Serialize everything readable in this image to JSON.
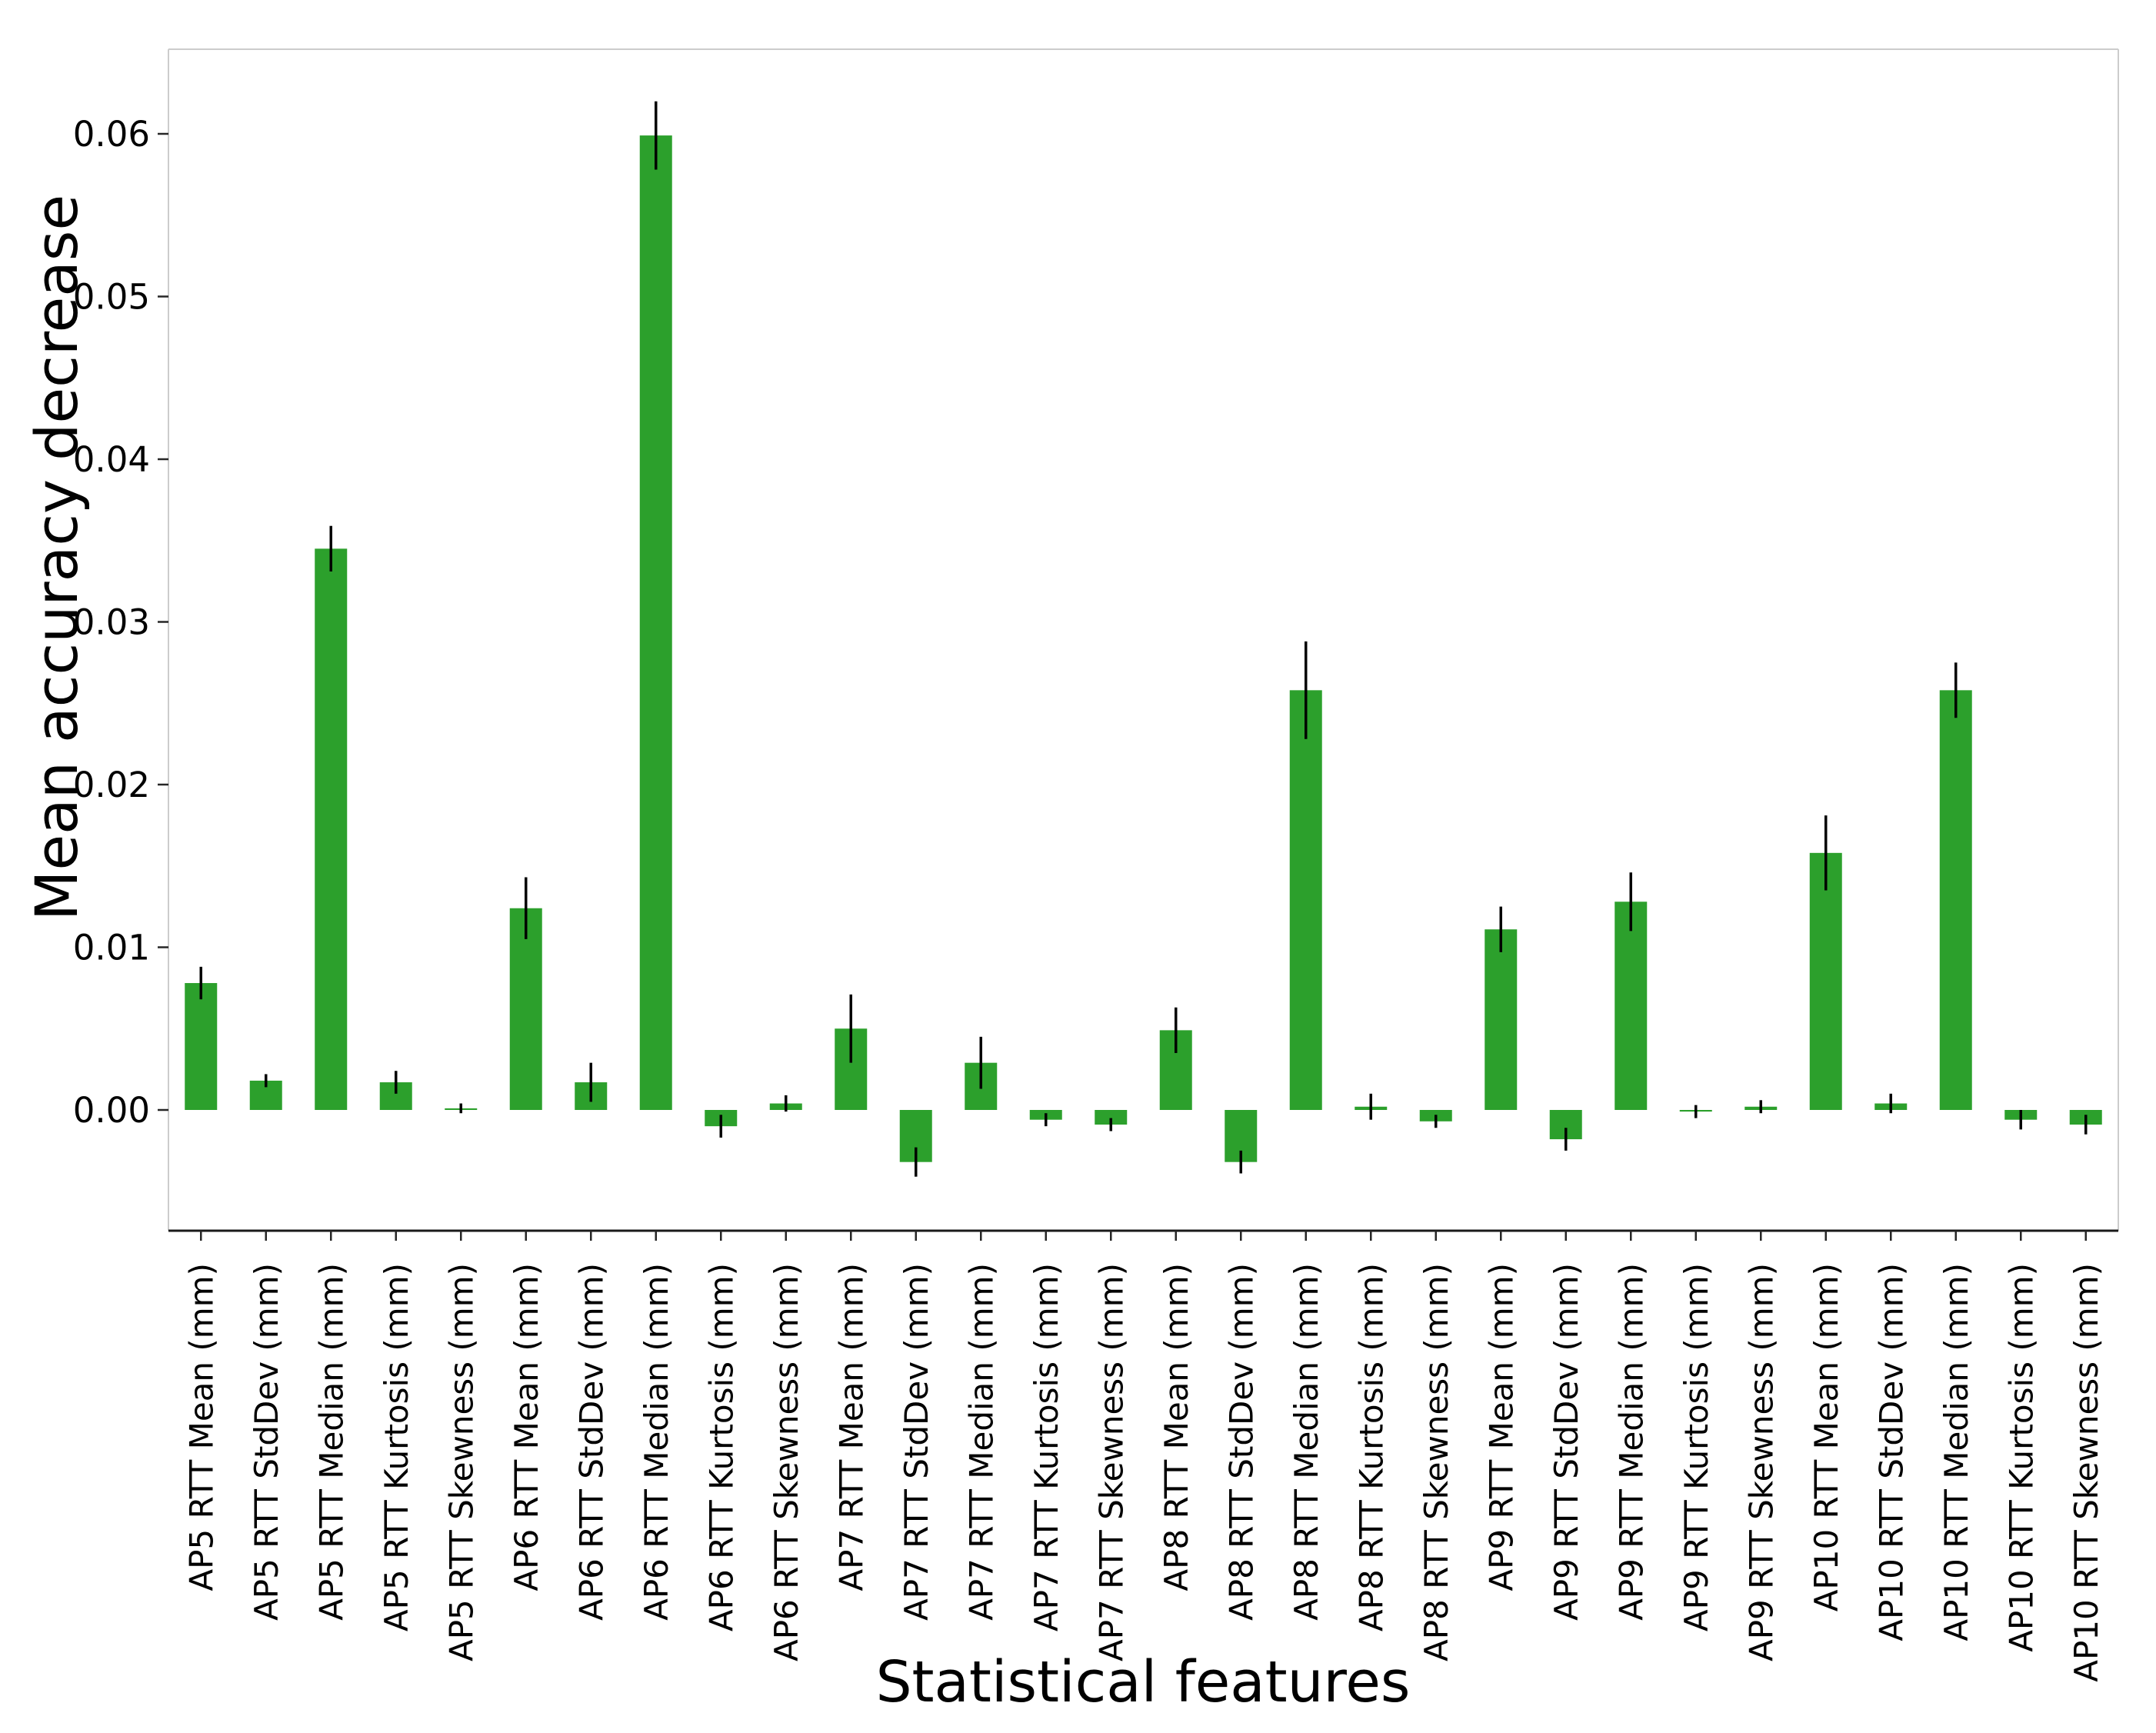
{
  "figure": {
    "background": "#ffffff"
  },
  "chart_data": {
    "type": "bar",
    "title": "",
    "xlabel": "Statistical features",
    "ylabel": "Mean accuracy decrease",
    "bar_color": "#2ca02c",
    "error_bar_color": "#000000",
    "grid": false,
    "legend_position": "none",
    "ylim": [
      -0.0074,
      0.0652
    ],
    "yticks": [
      0.0,
      0.01,
      0.02,
      0.03,
      0.04,
      0.05,
      0.06
    ],
    "ytick_labels": [
      "0.00",
      "0.01",
      "0.02",
      "0.03",
      "0.04",
      "0.05",
      "0.06"
    ],
    "categories": [
      "AP5 RTT Mean (mm)",
      "AP5 RTT StdDev (mm)",
      "AP5 RTT Median (mm)",
      "AP5 RTT Kurtosis (mm)",
      "AP5 RTT Skewness (mm)",
      "AP6 RTT Mean (mm)",
      "AP6 RTT StdDev (mm)",
      "AP6 RTT Median (mm)",
      "AP6 RTT Kurtosis (mm)",
      "AP6 RTT Skewness (mm)",
      "AP7 RTT Mean (mm)",
      "AP7 RTT StdDev (mm)",
      "AP7 RTT Median (mm)",
      "AP7 RTT Kurtosis (mm)",
      "AP7 RTT Skewness (mm)",
      "AP8 RTT Mean (mm)",
      "AP8 RTT StdDev (mm)",
      "AP8 RTT Median (mm)",
      "AP8 RTT Kurtosis (mm)",
      "AP8 RTT Skewness (mm)",
      "AP9 RTT Mean (mm)",
      "AP9 RTT StdDev (mm)",
      "AP9 RTT Median (mm)",
      "AP9 RTT Kurtosis (mm)",
      "AP9 RTT Skewness (mm)",
      "AP10 RTT Mean (mm)",
      "AP10 RTT StdDev (mm)",
      "AP10 RTT Median (mm)",
      "AP10 RTT Kurtosis (mm)",
      "AP10 RTT Skewness (mm)"
    ],
    "values": [
      0.0078,
      0.0018,
      0.0345,
      0.0017,
      0.0001,
      0.0124,
      0.0017,
      0.0599,
      -0.001,
      0.0004,
      0.005,
      -0.0032,
      0.0029,
      -0.0006,
      -0.0009,
      0.0049,
      -0.0032,
      0.0258,
      0.0002,
      -0.0007,
      0.0111,
      -0.0018,
      0.0128,
      -0.0001,
      0.0002,
      0.0158,
      0.0004,
      0.0258,
      -0.0006,
      -0.0009
    ],
    "errors": [
      0.001,
      0.0004,
      0.0014,
      0.0007,
      0.0003,
      0.0019,
      0.0012,
      0.0021,
      0.0007,
      0.0005,
      0.0021,
      0.0009,
      0.0016,
      0.0004,
      0.0004,
      0.0014,
      0.0007,
      0.003,
      0.0008,
      0.0004,
      0.0014,
      0.0007,
      0.0018,
      0.0004,
      0.0004,
      0.0023,
      0.0006,
      0.0017,
      0.0006,
      0.0006
    ]
  }
}
